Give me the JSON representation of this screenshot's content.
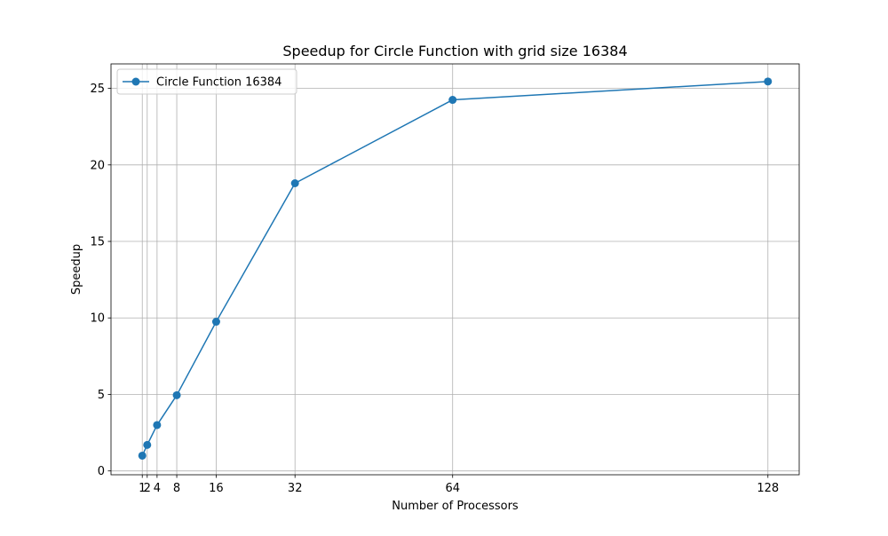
{
  "chart_data": {
    "type": "line",
    "title": "Speedup for Circle Function with grid size 16384",
    "xlabel": "Number of Processors",
    "ylabel": "Speedup",
    "x": [
      1,
      2,
      4,
      8,
      16,
      32,
      64,
      128
    ],
    "x_tick_labels": [
      "1",
      "2",
      "4",
      "8",
      "16",
      "32",
      "64",
      "128"
    ],
    "y_ticks": [
      0,
      5,
      10,
      15,
      20,
      25
    ],
    "y_tick_labels": [
      "0",
      "5",
      "10",
      "15",
      "20",
      "25"
    ],
    "xlim": [
      -5.35,
      134.35
    ],
    "ylim": [
      -0.25,
      26.6
    ],
    "grid": true,
    "legend_position": "upper left",
    "series": [
      {
        "name": "Circle Function 16384",
        "color": "#1f77b4",
        "marker": "circle",
        "values": [
          1.0,
          1.7,
          3.0,
          4.95,
          9.75,
          18.8,
          24.25,
          25.45
        ]
      }
    ]
  }
}
